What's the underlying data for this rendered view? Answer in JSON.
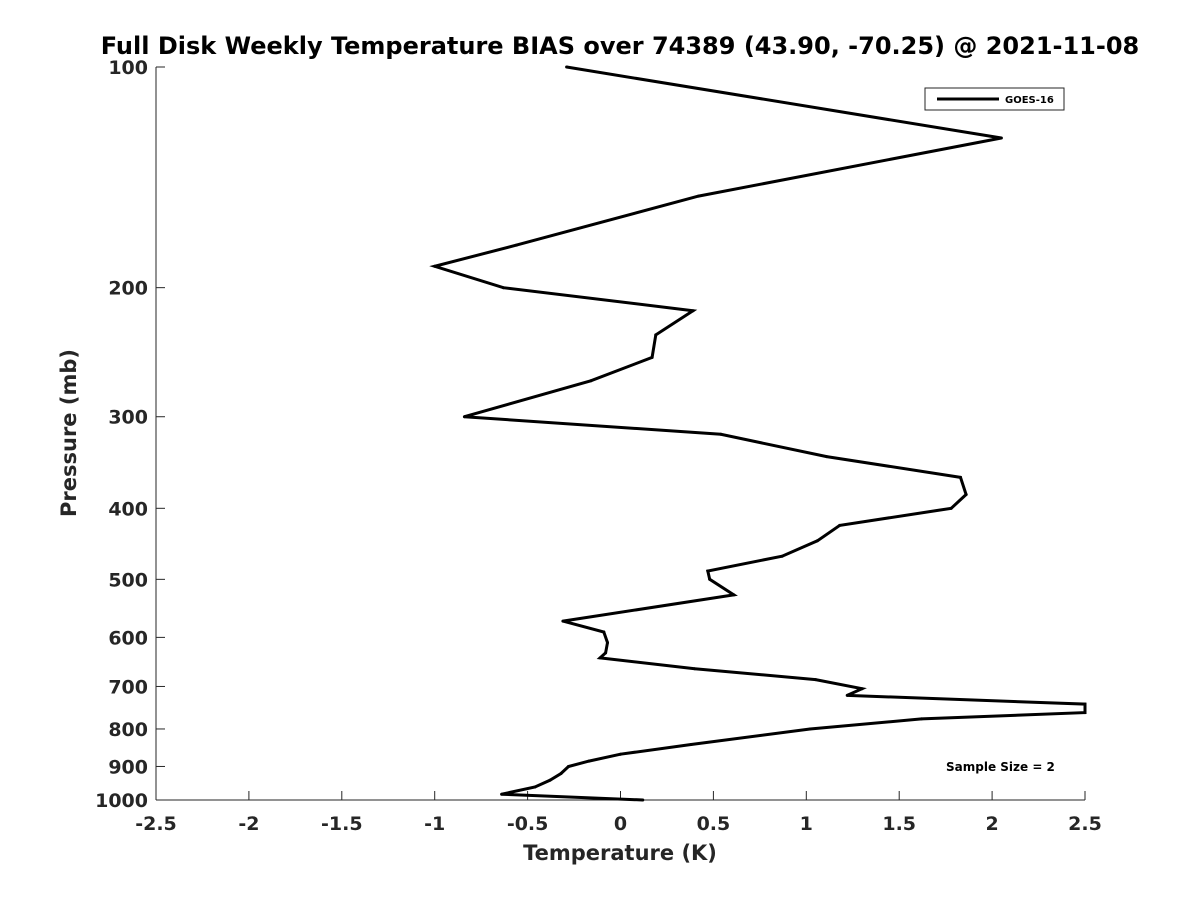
{
  "chart_data": {
    "type": "line",
    "title": "Full Disk Weekly Temperature BIAS over 74389 (43.90, -70.25) @ 2021-11-08",
    "xlabel": "Temperature (K)",
    "ylabel": "Pressure (mb)",
    "xlim": [
      -2.5,
      2.5
    ],
    "ylim": [
      100,
      1000
    ],
    "y_scale": "log",
    "y_reversed": true,
    "x_ticks": [
      -2.5,
      -2,
      -1.5,
      -1,
      -0.5,
      0,
      0.5,
      1,
      1.5,
      2,
      2.5
    ],
    "x_tick_labels": [
      "-2.5",
      "-2",
      "-1.5",
      "-1",
      "-0.5",
      "0",
      "0.5",
      "1",
      "1.5",
      "2",
      "2.5"
    ],
    "y_ticks": [
      100,
      200,
      300,
      400,
      500,
      600,
      700,
      800,
      900,
      1000
    ],
    "y_tick_labels": [
      "100",
      "200",
      "300",
      "400",
      "500",
      "600",
      "700",
      "800",
      "900",
      "1000"
    ],
    "grid": false,
    "legend_position": "top-right",
    "series": [
      {
        "name": "GOES-16",
        "color": "#000000",
        "points": [
          [
            -0.29,
            100
          ],
          [
            2.05,
            125
          ],
          [
            0.42,
            150
          ],
          [
            -0.56,
            175
          ],
          [
            -1.0,
            187
          ],
          [
            -0.63,
            200
          ],
          [
            0.39,
            215
          ],
          [
            0.19,
            232
          ],
          [
            0.17,
            249
          ],
          [
            -0.16,
            268
          ],
          [
            -0.84,
            300
          ],
          [
            0.54,
            317
          ],
          [
            1.11,
            340
          ],
          [
            1.83,
            363
          ],
          [
            1.86,
            383
          ],
          [
            1.78,
            400
          ],
          [
            1.18,
            422
          ],
          [
            1.06,
            443
          ],
          [
            0.87,
            465
          ],
          [
            0.47,
            487
          ],
          [
            0.48,
            500
          ],
          [
            0.61,
            525
          ],
          [
            -0.31,
            570
          ],
          [
            -0.09,
            590
          ],
          [
            -0.07,
            610
          ],
          [
            -0.08,
            630
          ],
          [
            -0.11,
            640
          ],
          [
            0.4,
            662
          ],
          [
            1.05,
            685
          ],
          [
            1.3,
            705
          ],
          [
            1.22,
            720
          ],
          [
            2.5,
            740
          ],
          [
            2.5,
            760
          ],
          [
            1.62,
            775
          ],
          [
            1.02,
            800
          ],
          [
            0.38,
            840
          ],
          [
            0.0,
            866
          ],
          [
            -0.17,
            885
          ],
          [
            -0.28,
            900
          ],
          [
            -0.32,
            920
          ],
          [
            -0.38,
            940
          ],
          [
            -0.46,
            960
          ],
          [
            -0.64,
            982
          ],
          [
            0.12,
            1000
          ]
        ]
      }
    ],
    "annotation": "Sample Size = 2"
  }
}
